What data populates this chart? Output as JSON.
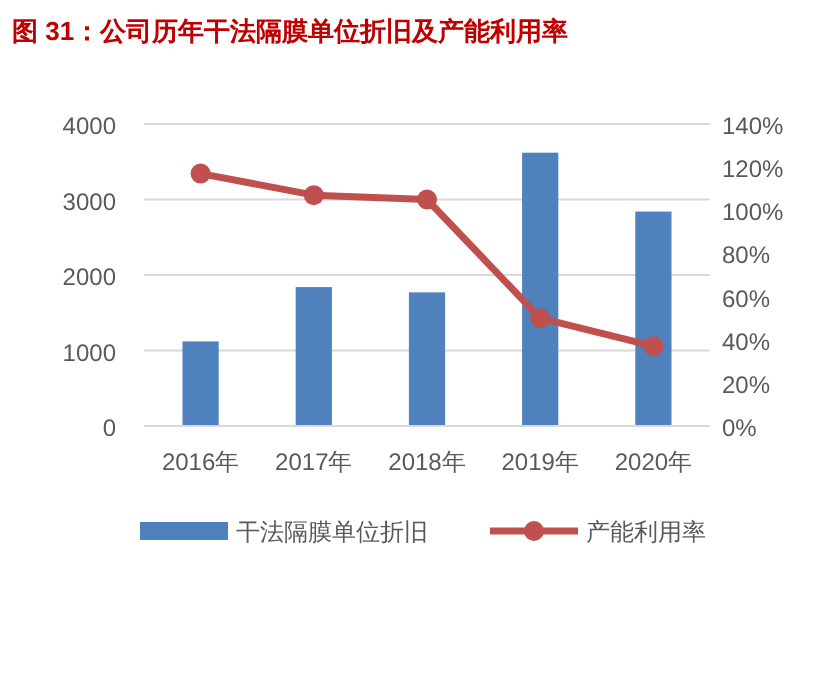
{
  "chart_data": {
    "type": "bar",
    "title": "图 31：公司历年干法隔膜单位折旧及产能利用率",
    "categories": [
      "2016年",
      "2017年",
      "2018年",
      "2019年",
      "2020年"
    ],
    "series": [
      {
        "name": "干法隔膜单位折旧",
        "color": "#4f81bd",
        "values": [
          1120,
          1840,
          1770,
          3620,
          2840
        ]
      },
      {
        "name": "产能利用率",
        "type": "line",
        "axis": "y2",
        "color": "#c0504d",
        "marker": "circle",
        "values": [
          117,
          107,
          105,
          50,
          37
        ]
      }
    ],
    "ylim": [
      0,
      4000
    ],
    "yticks": [
      0,
      1000,
      2000,
      3000,
      4000
    ],
    "y2lim": [
      0,
      140
    ],
    "y2ticks": [
      {
        "value": 0,
        "label": "0%"
      },
      {
        "value": 20,
        "label": "20%"
      },
      {
        "value": 40,
        "label": "40%"
      },
      {
        "value": 60,
        "label": "60%"
      },
      {
        "value": 80,
        "label": "80%"
      },
      {
        "value": 100,
        "label": "100%"
      },
      {
        "value": 120,
        "label": "120%"
      },
      {
        "value": 140,
        "label": "140%"
      }
    ],
    "grid": "y",
    "legend": "bottom"
  }
}
